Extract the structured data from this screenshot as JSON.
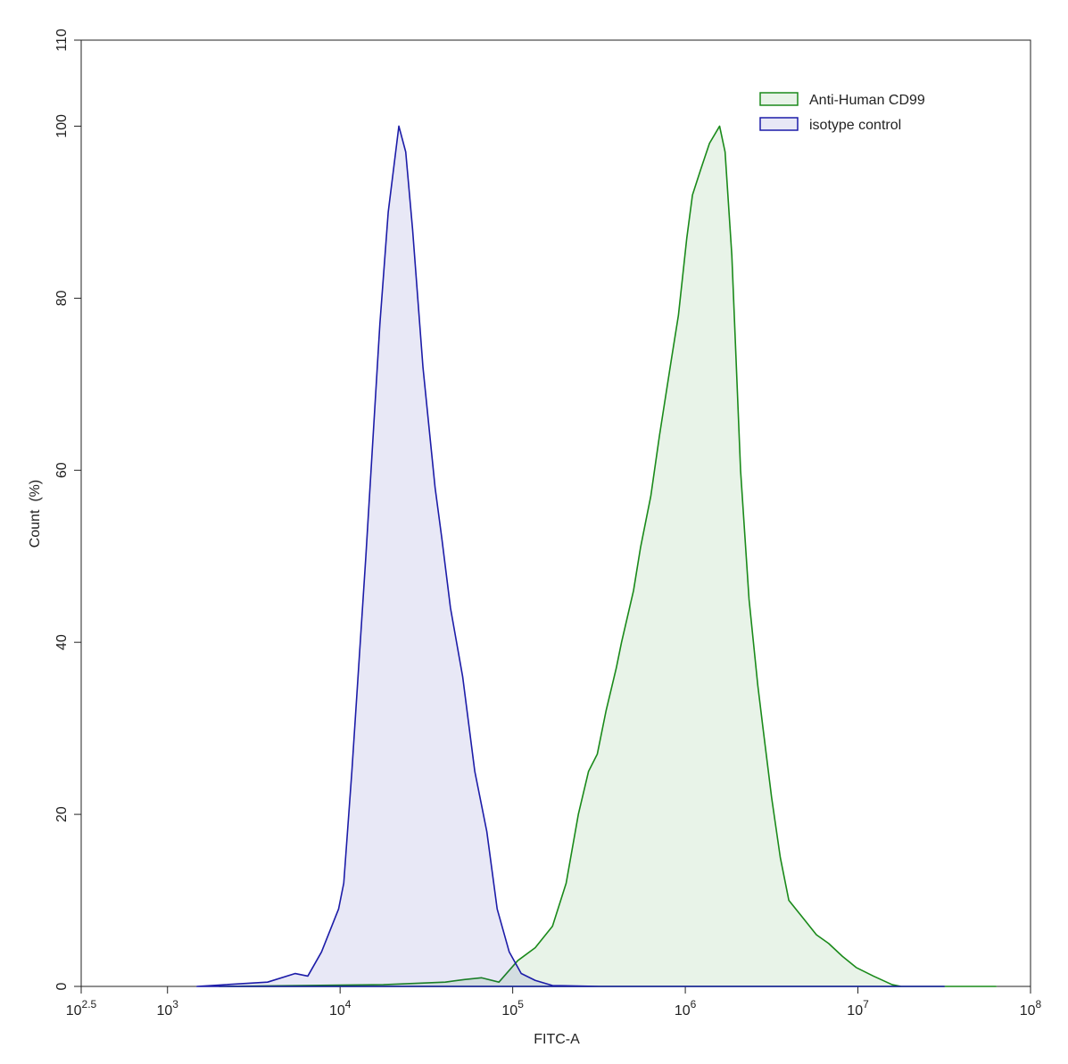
{
  "chart_data": {
    "type": "histogram-overlay",
    "x_label": "FITC-A",
    "y_label": "Count  (%)",
    "log_x": true,
    "xlim": [
      316.23,
      100000000
    ],
    "xticks": [
      {
        "value": 316.23,
        "label": "10^2.5"
      },
      {
        "value": 1000,
        "label": "10^3"
      },
      {
        "value": 10000,
        "label": "10^4"
      },
      {
        "value": 100000,
        "label": "10^5"
      },
      {
        "value": 1000000,
        "label": "10^6"
      },
      {
        "value": 10000000,
        "label": "10^7"
      },
      {
        "value": 100000000,
        "label": "10^8"
      }
    ],
    "ylim": [
      0,
      110
    ],
    "yticks": [
      0,
      20,
      40,
      60,
      80,
      100,
      110
    ],
    "legend": "upper right",
    "series": [
      {
        "name": "Anti-Human CD99",
        "color": "#1a8a1a",
        "x": [
          2000,
          17800,
          40700,
          52500,
          66100,
          83200,
          107000,
          135000,
          170000,
          204000,
          240000,
          275000,
          309000,
          347000,
          398000,
          427000,
          501000,
          550000,
          631000,
          708000,
          832000,
          912000,
          1020000,
          1100000,
          1230000,
          1380000,
          1580000,
          1700000,
          1860000,
          2090000,
          2340000,
          2630000,
          2820000,
          3160000,
          3550000,
          3980000,
          4790000,
          5750000,
          6760000,
          8130000,
          9770000,
          12300000,
          15800000,
          17800000,
          63100000
        ],
        "values": [
          0,
          0.2,
          0.5,
          0.8,
          1.0,
          0.5,
          3,
          4.5,
          7,
          12,
          20,
          25,
          27,
          32,
          37,
          40,
          46,
          51,
          57,
          64,
          73,
          78,
          87,
          92,
          95,
          98,
          100,
          97,
          85,
          60,
          45,
          35,
          30,
          22,
          15,
          10,
          8,
          6,
          5,
          3.5,
          2.2,
          1.2,
          0.2,
          0,
          0
        ]
      },
      {
        "name": "isotype control",
        "color": "#1c1ca8",
        "x": [
          1480,
          3800,
          5500,
          6500,
          7800,
          9800,
          10500,
          11700,
          14100,
          17000,
          19000,
          21900,
          24000,
          26300,
          30200,
          35500,
          38900,
          43600,
          51300,
          60300,
          70800,
          81300,
          95500,
          112000,
          135000,
          170000,
          316000,
          3160000,
          31600000
        ],
        "values": [
          0,
          0.5,
          1.5,
          1.2,
          4,
          9,
          12,
          25,
          50,
          77,
          90,
          100,
          97,
          88,
          72,
          58,
          52,
          44,
          36,
          25,
          18,
          9,
          4,
          1.5,
          0.7,
          0.1,
          0,
          0,
          0
        ]
      }
    ]
  }
}
